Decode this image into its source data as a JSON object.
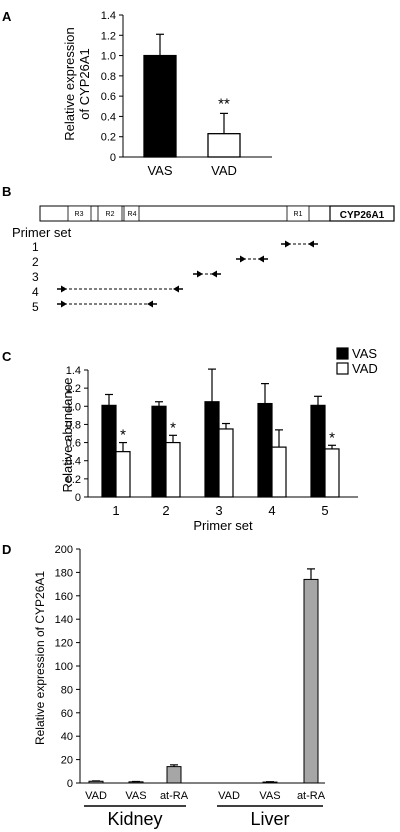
{
  "panels": [
    "A",
    "B",
    "C",
    "D"
  ],
  "colors": {
    "filled": "#000000",
    "open": "#ffffff",
    "gray": "#a6a6a6"
  },
  "chart_data": [
    {
      "panel": "A",
      "type": "bar",
      "categories": [
        "VAS",
        "VAD"
      ],
      "values": [
        1.0,
        0.23
      ],
      "errors": [
        0.21,
        0.2
      ],
      "fills": [
        "#000000",
        "#ffffff"
      ],
      "significance": [
        "",
        "**"
      ],
      "ylabel": "Relative expression\nof CYP26A1",
      "ylim": [
        0,
        1.4
      ],
      "yticks": [
        "0",
        "0.2",
        "0.4",
        "0.6",
        "0.8",
        "1.0",
        "1.2",
        "1.4"
      ]
    },
    {
      "panel": "C",
      "type": "bar",
      "categories": [
        "1",
        "2",
        "3",
        "4",
        "5"
      ],
      "series": [
        {
          "name": "VAS",
          "fill": "#000000",
          "values": [
            1.01,
            1.0,
            1.05,
            1.03,
            1.01
          ],
          "errors": [
            0.12,
            0.05,
            0.36,
            0.22,
            0.1
          ]
        },
        {
          "name": "VAD",
          "fill": "#ffffff",
          "values": [
            0.5,
            0.6,
            0.75,
            0.55,
            0.53
          ],
          "errors": [
            0.1,
            0.08,
            0.06,
            0.19,
            0.04
          ]
        }
      ],
      "significance": [
        "*",
        "*",
        "",
        "",
        "*"
      ],
      "xlabel": "Primer set",
      "ylabel": "Relative abundance",
      "ylim": [
        0,
        1.4
      ],
      "yticks": [
        "0",
        "0.2",
        "0.4",
        "0.6",
        "0.8",
        "1.0",
        "1.2",
        "1.4"
      ],
      "legend": "top-right"
    },
    {
      "panel": "D",
      "type": "bar",
      "categories": [
        "VAD",
        "VAS",
        "at-RA",
        "VAD",
        "VAS",
        "at-RA"
      ],
      "groups": [
        {
          "name": "Kidney",
          "indices": [
            0,
            1,
            2
          ]
        },
        {
          "name": "Liver",
          "indices": [
            3,
            4,
            5
          ]
        }
      ],
      "values": [
        1.5,
        1.0,
        14.0,
        0,
        0.8,
        174
      ],
      "errors": [
        0.3,
        0.3,
        1.5,
        0,
        0.3,
        9
      ],
      "fill": "#a6a6a6",
      "ylabel": "Relative expression of CYP26A1",
      "ylim": [
        0,
        200
      ],
      "yticks": [
        "0",
        "20",
        "40",
        "60",
        "80",
        "100",
        "120",
        "140",
        "160",
        "180",
        "200"
      ]
    }
  ],
  "diagram": {
    "panel": "B",
    "gene_label": "CYP26A1",
    "segments": [
      "R3",
      "R2",
      "R4",
      "R1"
    ],
    "primer_title": "Primer set",
    "primer_sets": [
      "1",
      "2",
      "3",
      "4",
      "5"
    ]
  }
}
